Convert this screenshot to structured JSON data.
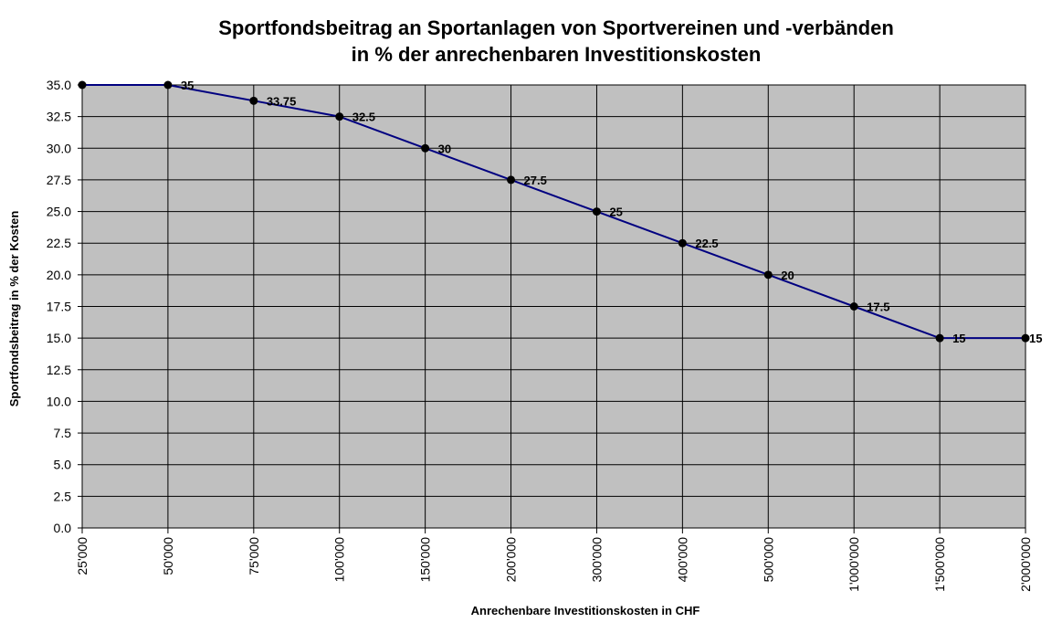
{
  "chart_data": {
    "type": "line",
    "title": [
      "Sportfondsbeitrag an Sportanlagen von Sportvereinen und -verbänden",
      "in % der anrechenbaren Investitionskosten"
    ],
    "xlabel": "Anrechenbare Investitionskosten in CHF",
    "ylabel": "Sportfondsbeitrag in % der Kosten",
    "categories": [
      "25'000",
      "50'000",
      "75'000",
      "100'000",
      "150'000",
      "200'000",
      "300'000",
      "400'000",
      "500'000",
      "1'000'000",
      "1'500'000",
      "2'000'000"
    ],
    "values": [
      35,
      35,
      33.75,
      32.5,
      30,
      27.5,
      25,
      22.5,
      20,
      17.5,
      15,
      15
    ],
    "data_labels": [
      "",
      "35",
      "33.75",
      "32.5",
      "30",
      "27.5",
      "25",
      "22.5",
      "20",
      "17.5",
      "15",
      "15"
    ],
    "ylim": [
      0,
      35
    ],
    "ytick_step": 2.5,
    "ytick_labels": [
      "0.0",
      "2.5",
      "5.0",
      "7.5",
      "10.0",
      "12.5",
      "15.0",
      "17.5",
      "20.0",
      "22.5",
      "25.0",
      "27.5",
      "30.0",
      "32.5",
      "35.0"
    ],
    "grid": true,
    "legend": "none",
    "colors": {
      "plot_background": "#c0c0c0",
      "line": "#000080",
      "marker": "#000000",
      "grid": "#000000"
    }
  }
}
